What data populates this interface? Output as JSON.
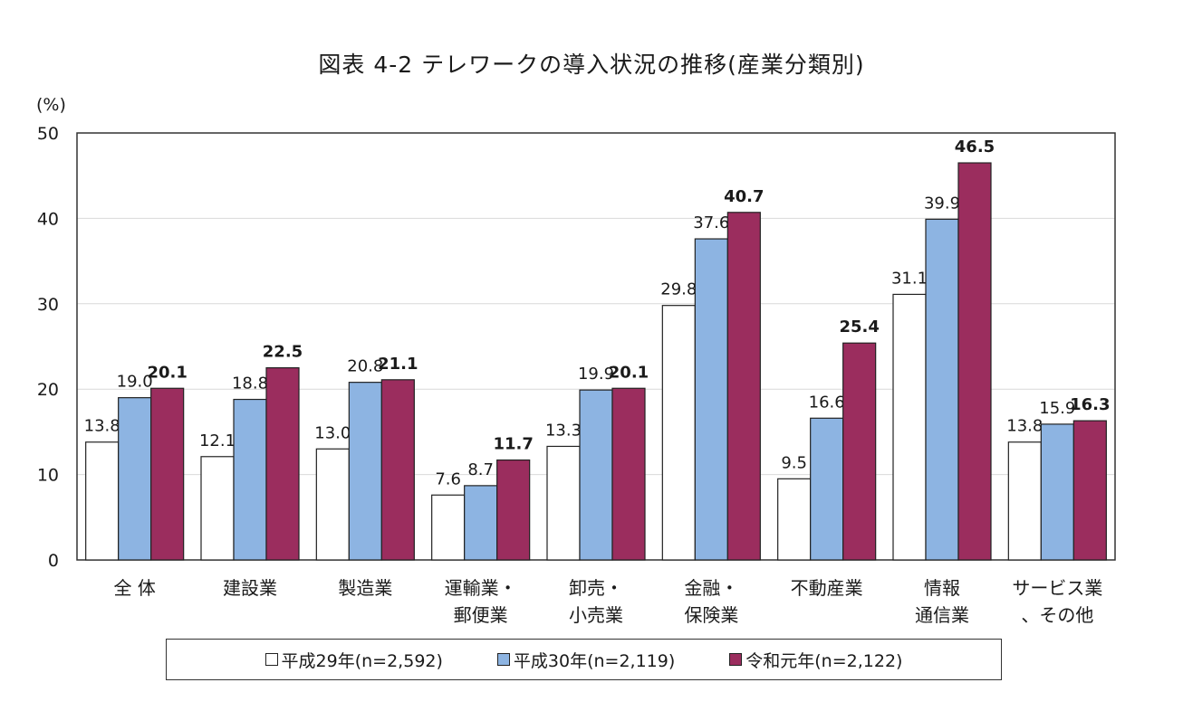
{
  "chart_data": {
    "type": "bar",
    "title": "図表 4-2 テレワークの導入状況の推移(産業分類別)",
    "ylabel": "(%)",
    "xlabel": "",
    "ylim": [
      0,
      50
    ],
    "yticks": [
      0,
      10,
      20,
      30,
      40,
      50
    ],
    "grid": true,
    "categories": [
      [
        "全 体"
      ],
      [
        "建設業"
      ],
      [
        "製造業"
      ],
      [
        "運輸業・",
        "郵便業"
      ],
      [
        "卸売・",
        "小売業"
      ],
      [
        "金融・",
        "保険業"
      ],
      [
        "不動産業"
      ],
      [
        "情報",
        "通信業"
      ],
      [
        "サービス業",
        "、その他"
      ]
    ],
    "series": [
      {
        "name": "平成29年(n=2,592)",
        "color": "#ffffff",
        "bold_labels": false,
        "values": [
          13.8,
          12.1,
          13.0,
          7.6,
          13.3,
          29.8,
          9.5,
          31.1,
          13.8
        ]
      },
      {
        "name": "平成30年(n=2,119)",
        "color": "#8db4e2",
        "bold_labels": false,
        "values": [
          19.0,
          18.8,
          20.8,
          8.7,
          19.9,
          37.6,
          16.6,
          39.9,
          15.9
        ]
      },
      {
        "name": "令和元年(n=2,122)",
        "color": "#9b2d5e",
        "bold_labels": true,
        "values": [
          20.1,
          22.5,
          21.1,
          11.7,
          20.1,
          40.7,
          25.4,
          46.5,
          16.3
        ]
      }
    ],
    "legend": "bottom"
  }
}
